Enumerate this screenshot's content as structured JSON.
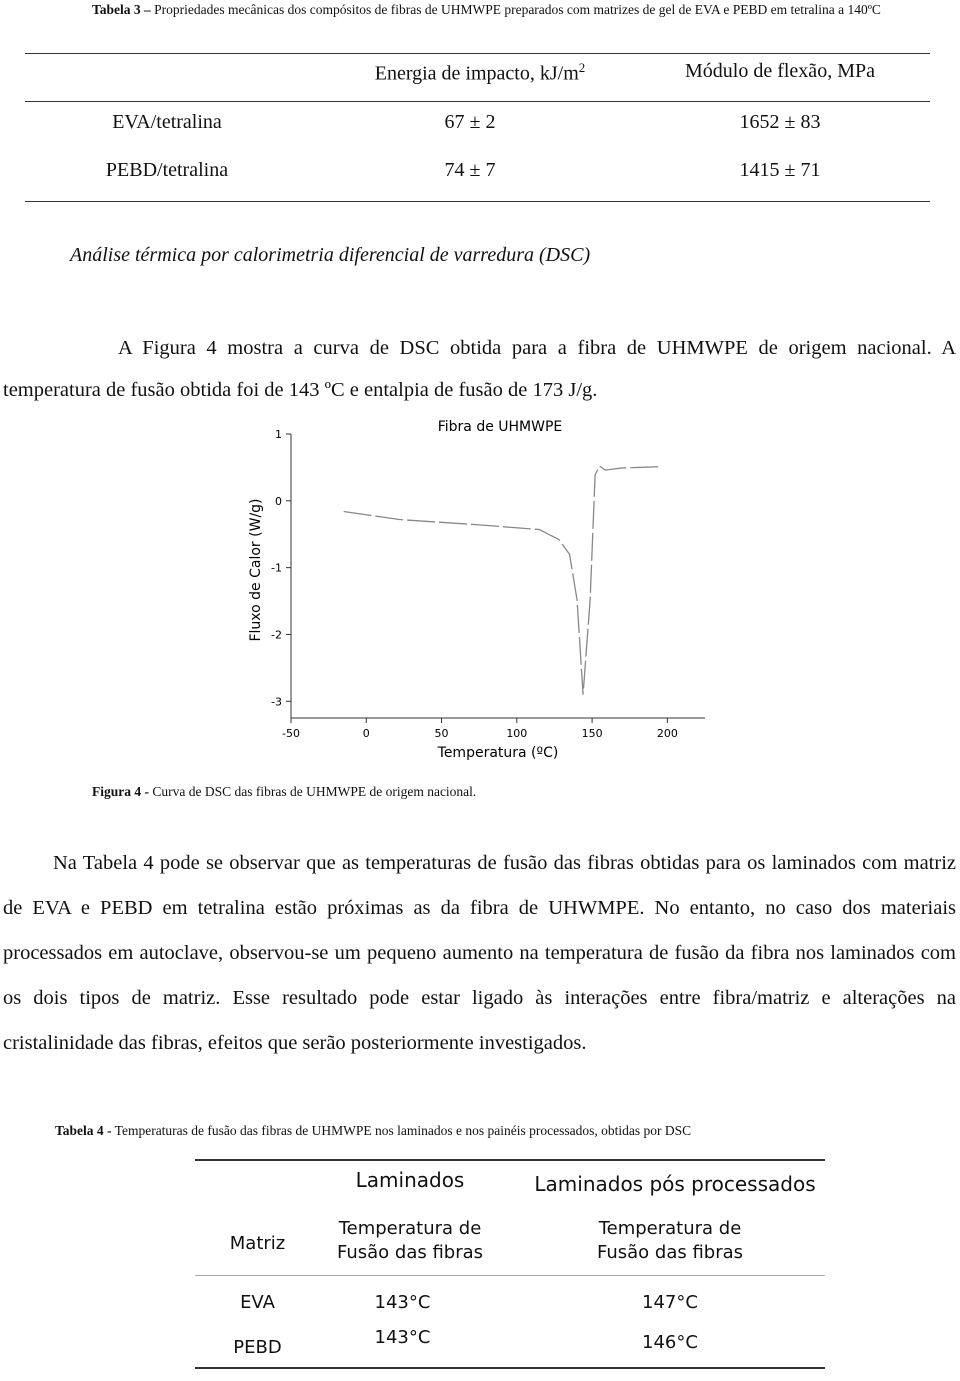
{
  "table3": {
    "caption_label": "Tabela 3 –",
    "caption_text": "Propriedades mecânicas dos compósitos de fibras de UHMWPE preparados com matrizes de gel de EVA e PEBD em tetralina a 140ºC",
    "headers": [
      {
        "text": "Energia de impacto, kJ/m",
        "sup": "2"
      },
      {
        "text": "Módulo de flexão, MPa"
      }
    ],
    "rows": [
      [
        "EVA/tetralina",
        "67 ± 2",
        "1652 ± 83"
      ],
      [
        "PEBD/tetralina",
        "74 ± 7",
        "1415 ± 71"
      ]
    ]
  },
  "section_heading": "Análise térmica por calorimetria diferencial de varredura (DSC)",
  "paragraph1": "A Figura 4 mostra a curva de DSC obtida para a fibra de UHMWPE de origem nacional. A temperatura de fusão obtida foi de 143 ºC e entalpia de fusão de 173 J/g.",
  "chart_data": {
    "type": "line",
    "title": "Fibra de UHMWPE",
    "xlabel": "Temperatura (ºC)",
    "ylabel": "Fluxo de Calor (W/g)",
    "x": [
      -15,
      22,
      75,
      115,
      128,
      135,
      140,
      144,
      148.7,
      152,
      155,
      158.7,
      169,
      194
    ],
    "values": [
      -0.16,
      -0.28,
      -0.36,
      -0.43,
      -0.58,
      -0.8,
      -1.48,
      -2.9,
      -1.48,
      0.39,
      0.52,
      0.46,
      0.49,
      0.51
    ],
    "color": "#888888",
    "xlim": [
      -50,
      225
    ],
    "ylim": [
      -3.25,
      1
    ],
    "xticks": [
      -50,
      0,
      50,
      100,
      150,
      200
    ],
    "yticks": [
      1,
      0,
      -1,
      -2,
      -3
    ]
  },
  "figure4_caption": {
    "label": "Figura 4 -",
    "text": "Curva de DSC das fibras de UHMWPE de origem nacional."
  },
  "paragraph2": "Na Tabela 4 pode se observar que as temperaturas de fusão das fibras obtidas para os laminados com matriz de EVA e PEBD em tetralina estão próximas as da fibra de UHWMPE. No entanto, no caso dos materiais processados em autoclave, observou-se um pequeno aumento na temperatura de fusão da fibra nos laminados com os dois tipos de matriz. Esse resultado pode estar ligado às interações entre fibra/matriz e alterações na cristalinidade das fibras, efeitos que serão posteriormente investigados.",
  "table4": {
    "caption_label": "Tabela 4 -",
    "caption_text": "Temperaturas de fusão das fibras de UHMWPE nos laminados e nos painéis processados, obtidas por DSC",
    "group_headers": [
      "Laminados",
      "Laminados pós processados"
    ],
    "headers": [
      "Matriz",
      "Temperatura de Fusão das fibras",
      "Temperatura de Fusão das fibras"
    ],
    "rows": [
      [
        "EVA",
        "143°C",
        "147°C"
      ],
      [
        "PEBD",
        "143°C",
        "146°C"
      ]
    ]
  }
}
